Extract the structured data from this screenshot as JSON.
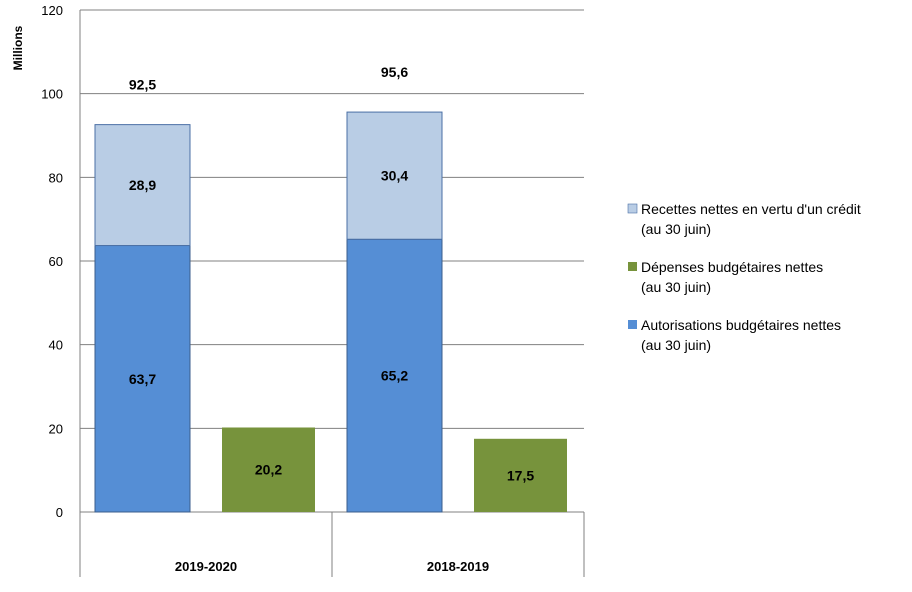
{
  "chart_data": {
    "type": "bar",
    "ylabel": "Millions",
    "ylim": [
      0,
      120
    ],
    "yticks": [
      0,
      20,
      40,
      60,
      80,
      100,
      120
    ],
    "grid": true,
    "legend_position": "right",
    "categories": [
      "2019-2020",
      "2018-2019"
    ],
    "stacks": [
      {
        "category": "2019-2020",
        "total_label": "92,5",
        "segments": [
          {
            "series": "Autorisations budgétaires nettes (au 30 juin)",
            "value": 63.7,
            "label": "63,7"
          },
          {
            "series": "Recettes nettes en vertu d'un crédit (au 30 juin)",
            "value": 28.9,
            "label": "28,9"
          }
        ]
      },
      {
        "category": "2018-2019",
        "total_label": "95,6",
        "segments": [
          {
            "series": "Autorisations budgétaires nettes (au 30 juin)",
            "value": 65.2,
            "label": "65,2"
          },
          {
            "series": "Recettes nettes en vertu d'un crédit (au 30 juin)",
            "value": 30.4,
            "label": "30,4"
          }
        ]
      }
    ],
    "single_bars": [
      {
        "category": "2019-2020",
        "series": "Dépenses budgétaires nettes (au 30 juin)",
        "value": 20.2,
        "label": "20,2"
      },
      {
        "category": "2018-2019",
        "series": "Dépenses budgétaires nettes (au 30 juin)",
        "value": 17.5,
        "label": "17,5"
      }
    ],
    "legend": [
      {
        "line1": "Recettes nettes en vertu d'un crédit",
        "line2": "(au 30 juin)",
        "color": "#b9cde5"
      },
      {
        "line1": "Dépenses budgétaires nettes",
        "line2": "(au 30 juin)",
        "color": "#77933c"
      },
      {
        "line1": "Autorisations budgétaires nettes",
        "line2": "(au 30 juin)",
        "color": "#558ed5"
      }
    ],
    "colors": {
      "recettes": "#b9cde5",
      "recettes_border": "#4a6fa5",
      "depenses": "#77933c",
      "autorisations": "#558ed5",
      "autorisations_border": "#3b5e8c",
      "grid": "#808080",
      "axis": "#808080"
    }
  }
}
